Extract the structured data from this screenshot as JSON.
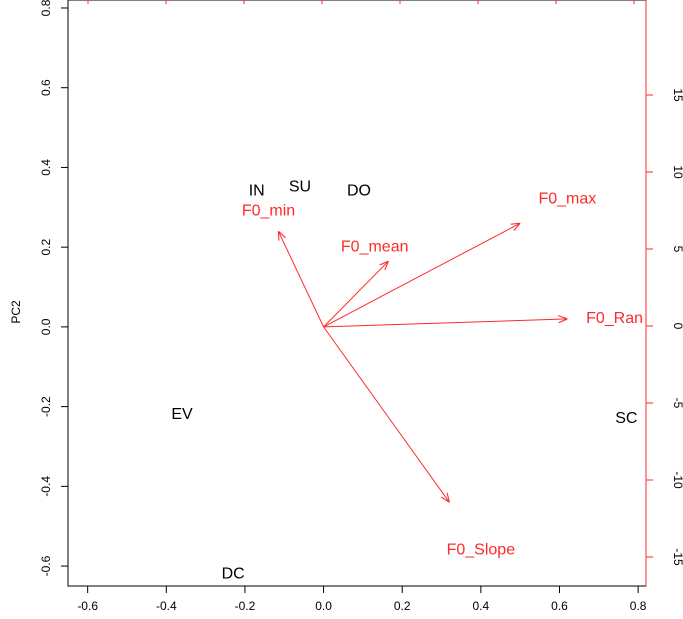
{
  "chart_data": {
    "type": "scatter",
    "subtype": "biplot",
    "title": "",
    "xlabel": "",
    "ylabel": "PC2",
    "xlim": [
      -0.65,
      0.82
    ],
    "ylim": [
      -0.65,
      0.82
    ],
    "x_ticks": [
      "-0.6",
      "-0.4",
      "-0.2",
      "0.0",
      "0.2",
      "0.4",
      "0.6",
      "0.8"
    ],
    "y_ticks": [
      "-0.6",
      "-0.4",
      "-0.2",
      "0.0",
      "0.2",
      "0.4",
      "0.6",
      "0.8"
    ],
    "right_ticks": [
      "-15",
      "-10",
      "-5",
      "0",
      "5",
      "10",
      "15"
    ],
    "colors": {
      "points": "#000000",
      "vectors": "#ff2a2a",
      "axis": "#000000"
    },
    "points": [
      {
        "label": "IN",
        "x": -0.17,
        "y": 0.34
      },
      {
        "label": "SU",
        "x": -0.06,
        "y": 0.35
      },
      {
        "label": "DO",
        "x": 0.09,
        "y": 0.34
      },
      {
        "label": "EV",
        "x": -0.36,
        "y": -0.22
      },
      {
        "label": "DC",
        "x": -0.23,
        "y": -0.62
      },
      {
        "label": "SC",
        "x": 0.77,
        "y": -0.23
      }
    ],
    "vectors": [
      {
        "label": "F0_min",
        "x": -0.115,
        "y": 0.24,
        "label_x": -0.14,
        "label_y": 0.29
      },
      {
        "label": "F0_mean",
        "x": 0.165,
        "y": 0.165,
        "label_x": 0.13,
        "label_y": 0.2
      },
      {
        "label": "F0_max",
        "x": 0.5,
        "y": 0.26,
        "label_x": 0.62,
        "label_y": 0.32
      },
      {
        "label": "F0_Ran",
        "x": 0.62,
        "y": 0.02,
        "label_x": 0.74,
        "label_y": 0.02
      },
      {
        "label": "F0_Slope",
        "x": 0.32,
        "y": -0.44,
        "label_x": 0.4,
        "label_y": -0.56
      }
    ]
  }
}
